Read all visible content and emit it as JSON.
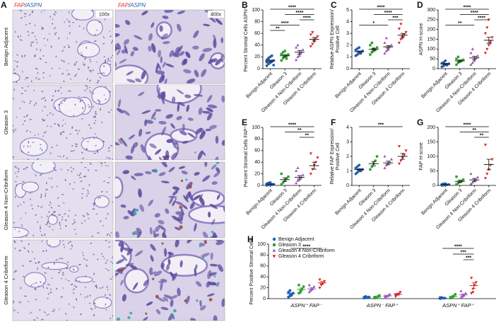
{
  "panel_a": {
    "label": "A",
    "stain": {
      "fap": "FAP",
      "slash": "/",
      "aspn": "ASPN"
    },
    "magnifications": [
      "100x",
      "400x"
    ],
    "rows": [
      "Benign Adjacent",
      "Gleason 3",
      "Gleason 4 Non-Cribriform",
      "Gleason 4 Cribriform"
    ]
  },
  "chart_data": [
    {
      "type": "dot",
      "label": "B",
      "ylabel": [
        "Percent Stromal Cells ASPN⁺"
      ],
      "categories": [
        "Benign Adjacent",
        "Gleason 3",
        "Gleason 4 Non-Cribriform",
        "Gleason 4 Cribriform"
      ],
      "colors": [
        "#1f5fb4",
        "#2ca02c",
        "#9b59b6",
        "#d62728"
      ],
      "markers": [
        "circle",
        "square",
        "triangle",
        "triangle-down"
      ],
      "points": [
        [
          5,
          8,
          10,
          12,
          14,
          15,
          18,
          20,
          22,
          6,
          11,
          16
        ],
        [
          14,
          18,
          20,
          22,
          24,
          25,
          28,
          30,
          17
        ],
        [
          15,
          20,
          25,
          28,
          32,
          36,
          40,
          22
        ],
        [
          38,
          42,
          48,
          52,
          55,
          58,
          62,
          46
        ]
      ],
      "means": [
        13,
        22,
        28,
        50
      ],
      "sems": [
        1.5,
        1.8,
        3,
        3
      ],
      "ylim": [
        0,
        100
      ],
      "yticks": [
        0,
        20,
        40,
        60,
        80,
        100
      ],
      "brackets": [
        {
          "from": 0,
          "to": 3,
          "label": "****"
        },
        {
          "from": 1,
          "to": 3,
          "label": "****"
        },
        {
          "from": 2,
          "to": 3,
          "label": "****"
        },
        {
          "from": 0,
          "to": 2,
          "label": "****"
        },
        {
          "from": 0,
          "to": 1,
          "label": "**"
        }
      ]
    },
    {
      "type": "dot",
      "label": "C",
      "ylabel": [
        "Relative ASPN Expression/",
        "Positive Cell"
      ],
      "categories": [
        "Benign Adjacent",
        "Gleason 3",
        "Gleason 4 Non-Cribriform",
        "Gleason 4 Cribriform"
      ],
      "colors": [
        "#1f5fb4",
        "#2ca02c",
        "#9b59b6",
        "#d62728"
      ],
      "markers": [
        "circle",
        "square",
        "triangle",
        "triangle-down"
      ],
      "points": [
        [
          1.1,
          1.2,
          1.3,
          1.4,
          1.5,
          1.6,
          1.7,
          1.8,
          1.3,
          1.5
        ],
        [
          1.2,
          1.4,
          1.5,
          1.6,
          1.8,
          2.0,
          2.2,
          1.7
        ],
        [
          1.3,
          1.5,
          1.7,
          1.9,
          2.0,
          2.2,
          2.6,
          1.6
        ],
        [
          2.2,
          2.5,
          2.7,
          2.9,
          3.1,
          3.4,
          3.8,
          2.6
        ]
      ],
      "means": [
        1.45,
        1.65,
        1.85,
        2.85
      ],
      "sems": [
        0.05,
        0.08,
        0.1,
        0.15
      ],
      "ylim": [
        0,
        5
      ],
      "yticks": [
        0,
        1,
        2,
        3,
        4,
        5
      ],
      "brackets": [
        {
          "from": 0,
          "to": 3,
          "label": "****"
        },
        {
          "from": 1,
          "to": 3,
          "label": "****"
        },
        {
          "from": 2,
          "to": 3,
          "label": "***"
        },
        {
          "from": 0,
          "to": 2,
          "label": "*"
        }
      ]
    },
    {
      "type": "dot",
      "label": "D",
      "ylabel": [
        "ASPN H-score"
      ],
      "categories": [
        "Benign Adjacent",
        "Gleason 3",
        "Gleason 4 Non-Cribriform",
        "Gleason 4 Cribriform"
      ],
      "colors": [
        "#1f5fb4",
        "#2ca02c",
        "#9b59b6",
        "#d62728"
      ],
      "markers": [
        "circle",
        "square",
        "triangle",
        "triangle-down"
      ],
      "points": [
        [
          10,
          15,
          20,
          22,
          25,
          28,
          32,
          40,
          18
        ],
        [
          20,
          30,
          35,
          40,
          45,
          50,
          60,
          38
        ],
        [
          20,
          30,
          45,
          55,
          65,
          80,
          100,
          40
        ],
        [
          80,
          100,
          120,
          140,
          160,
          180,
          210,
          250,
          130
        ]
      ],
      "means": [
        24,
        40,
        55,
        145
      ],
      "sems": [
        3,
        4,
        8,
        15
      ],
      "ylim": [
        0,
        300
      ],
      "yticks": [
        0,
        50,
        100,
        150,
        200,
        250,
        300
      ],
      "brackets": [
        {
          "from": 0,
          "to": 3,
          "label": "****"
        },
        {
          "from": 1,
          "to": 3,
          "label": "****"
        },
        {
          "from": 2,
          "to": 3,
          "label": "****"
        },
        {
          "from": 0,
          "to": 2,
          "label": "**"
        }
      ]
    },
    {
      "type": "dot",
      "label": "E",
      "ylabel": [
        "Percent Stromal Cells FAP⁺"
      ],
      "categories": [
        "Benign Adjacent",
        "Gleason 3",
        "Gleason 4 Non-Cribriform",
        "Gleason 4 Cribriform"
      ],
      "colors": [
        "#1f5fb4",
        "#2ca02c",
        "#9b59b6",
        "#d62728"
      ],
      "markers": [
        "circle",
        "square",
        "triangle",
        "triangle-down"
      ],
      "points": [
        [
          0,
          1,
          1,
          2,
          2,
          3,
          4,
          5,
          1
        ],
        [
          2,
          5,
          8,
          12,
          15,
          20
        ],
        [
          4,
          8,
          10,
          14,
          18,
          25,
          30
        ],
        [
          20,
          28,
          35,
          40,
          48,
          55
        ]
      ],
      "means": [
        2,
        10,
        14,
        34
      ],
      "sems": [
        0.5,
        3,
        3,
        6
      ],
      "ylim": [
        0,
        100
      ],
      "yticks": [
        0,
        20,
        40,
        60,
        80,
        100
      ],
      "brackets": [
        {
          "from": 0,
          "to": 3,
          "label": "****"
        },
        {
          "from": 1,
          "to": 3,
          "label": "**"
        },
        {
          "from": 2,
          "to": 3,
          "label": "**"
        }
      ]
    },
    {
      "type": "dot",
      "label": "F",
      "ylabel": [
        "Relative FAP Expression/",
        "Positive Cell"
      ],
      "categories": [
        "Benign Adjacent",
        "Gleason 3",
        "Gleason 4 Non-Cribriform",
        "Gleason 4 Cribriform"
      ],
      "colors": [
        "#1f5fb4",
        "#2ca02c",
        "#9b59b6",
        "#d62728"
      ],
      "markers": [
        "circle",
        "square",
        "triangle",
        "triangle-down"
      ],
      "points": [
        [
          0.8,
          0.9,
          1.0,
          1.0,
          1.1,
          1.2,
          1.3,
          1.4
        ],
        [
          1.1,
          1.3,
          1.5,
          1.7,
          2.0
        ],
        [
          1.2,
          1.4,
          1.5,
          1.6,
          1.8,
          2.0
        ],
        [
          1.5,
          1.7,
          1.9,
          2.1,
          2.4,
          2.7
        ]
      ],
      "means": [
        1.1,
        1.5,
        1.55,
        2.0
      ],
      "sems": [
        0.05,
        0.15,
        0.12,
        0.2
      ],
      "ylim": [
        0,
        4
      ],
      "yticks": [
        0,
        1,
        2,
        3,
        4
      ],
      "brackets": [
        {
          "from": 0,
          "to": 3,
          "label": "***"
        }
      ]
    },
    {
      "type": "dot",
      "label": "G",
      "ylabel": [
        "FAP H-score"
      ],
      "categories": [
        "Benign Adjacent",
        "Gleason 3",
        "Gleason 4 Non-Cribriform",
        "Gleason 4 Cribriform"
      ],
      "colors": [
        "#1f5fb4",
        "#2ca02c",
        "#9b59b6",
        "#d62728"
      ],
      "markers": [
        "circle",
        "square",
        "triangle",
        "triangle-down"
      ],
      "points": [
        [
          0,
          1,
          2,
          2,
          3,
          4,
          5,
          6
        ],
        [
          3,
          8,
          12,
          15,
          20,
          30
        ],
        [
          5,
          10,
          15,
          20,
          28,
          40
        ],
        [
          25,
          40,
          55,
          70,
          90,
          140
        ]
      ],
      "means": [
        3,
        14,
        19,
        72
      ],
      "sems": [
        0.8,
        4,
        5,
        18
      ],
      "ylim": [
        0,
        200
      ],
      "yticks": [
        0,
        50,
        100,
        150,
        200
      ],
      "brackets": [
        {
          "from": 0,
          "to": 3,
          "label": "****"
        },
        {
          "from": 1,
          "to": 3,
          "label": "**"
        },
        {
          "from": 2,
          "to": 3,
          "label": "**"
        }
      ]
    },
    {
      "type": "grouped-dot",
      "label": "H",
      "ylabel": [
        "Percent Positive Stromal Cells"
      ],
      "categories": [
        "ASPN⁺ FAP⁻",
        "ASPN⁻ FAP⁺",
        "ASPN⁺ FAP⁺"
      ],
      "legend": "upper left",
      "series": [
        {
          "name": "Benign Adjacent",
          "color": "#1f5fb4",
          "marker": "circle",
          "values": [
            [
              3,
              5,
              8,
              10,
              12,
              15,
              6
            ],
            [
              1,
              2,
              2,
              3,
              3,
              4
            ],
            [
              0,
              1,
              1,
              1,
              2,
              2
            ]
          ],
          "means": [
            9,
            2,
            1
          ],
          "sems": [
            1.5,
            0.3,
            0.2
          ]
        },
        {
          "name": "Gleason 3",
          "color": "#2ca02c",
          "marker": "square",
          "values": [
            [
              10,
              14,
              18,
              22,
              25,
              12
            ],
            [
              1,
              2,
              4,
              6,
              3
            ],
            [
              1,
              3,
              5,
              8,
              2
            ]
          ],
          "means": [
            17,
            3,
            4
          ],
          "sems": [
            2.5,
            0.8,
            1.2
          ]
        },
        {
          "name": "Gleason 4 Non-Cribriform",
          "color": "#9b59b6",
          "marker": "triangle",
          "values": [
            [
              12,
              15,
              18,
              22,
              25,
              16
            ],
            [
              2,
              4,
              6,
              8,
              5
            ],
            [
              2,
              4,
              6,
              10,
              14,
              5
            ]
          ],
          "means": [
            18,
            5,
            7
          ],
          "sems": [
            2,
            1,
            1.8
          ]
        },
        {
          "name": "Gleason 4 Cribriform",
          "color": "#d62728",
          "marker": "triangle-down",
          "values": [
            [
              20,
              25,
              28,
              32,
              35,
              26
            ],
            [
              4,
              7,
              9,
              12,
              8
            ],
            [
              10,
              18,
              25,
              30,
              38,
              12
            ]
          ],
          "means": [
            29,
            8,
            24
          ],
          "sems": [
            2.5,
            1.5,
            5
          ]
        }
      ],
      "ylim": [
        0,
        100
      ],
      "yticks": [
        0,
        20,
        40,
        60,
        80,
        100
      ],
      "brackets": [
        {
          "category": 0,
          "from": 0,
          "to": 3,
          "label": "****"
        },
        {
          "category": 2,
          "from": 0,
          "to": 3,
          "label": "****"
        },
        {
          "category": 2,
          "from": 1,
          "to": 3,
          "label": "***"
        },
        {
          "category": 2,
          "from": 2,
          "to": 3,
          "label": "***"
        }
      ]
    }
  ]
}
